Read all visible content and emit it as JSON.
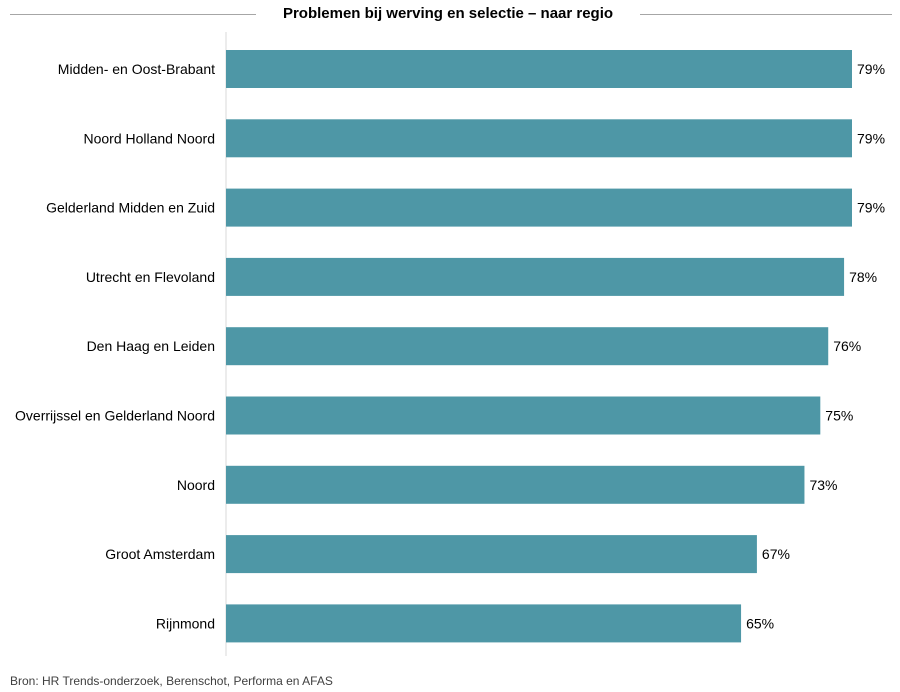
{
  "chart_data": {
    "type": "bar",
    "orientation": "horizontal",
    "title": "Problemen bij werving en selectie – naar regio",
    "categories": [
      "Midden- en Oost-Brabant",
      "Noord Holland Noord",
      "Gelderland Midden en Zuid",
      "Utrecht en Flevoland",
      "Den Haag en Leiden",
      "Overrijssel en Gelderland Noord",
      "Noord",
      "Groot Amsterdam",
      "Rijnmond"
    ],
    "values": [
      79,
      79,
      79,
      78,
      76,
      75,
      73,
      67,
      65
    ],
    "value_labels": [
      "79%",
      "79%",
      "79%",
      "78%",
      "76%",
      "75%",
      "73%",
      "67%",
      "65%"
    ],
    "xlim": [
      0,
      79
    ],
    "grid": false,
    "bar_color": "#4e97a6",
    "axis_color": "#d9d9d9"
  },
  "source": "Bron: HR Trends-onderzoek, Berenschot, Performa en AFAS"
}
